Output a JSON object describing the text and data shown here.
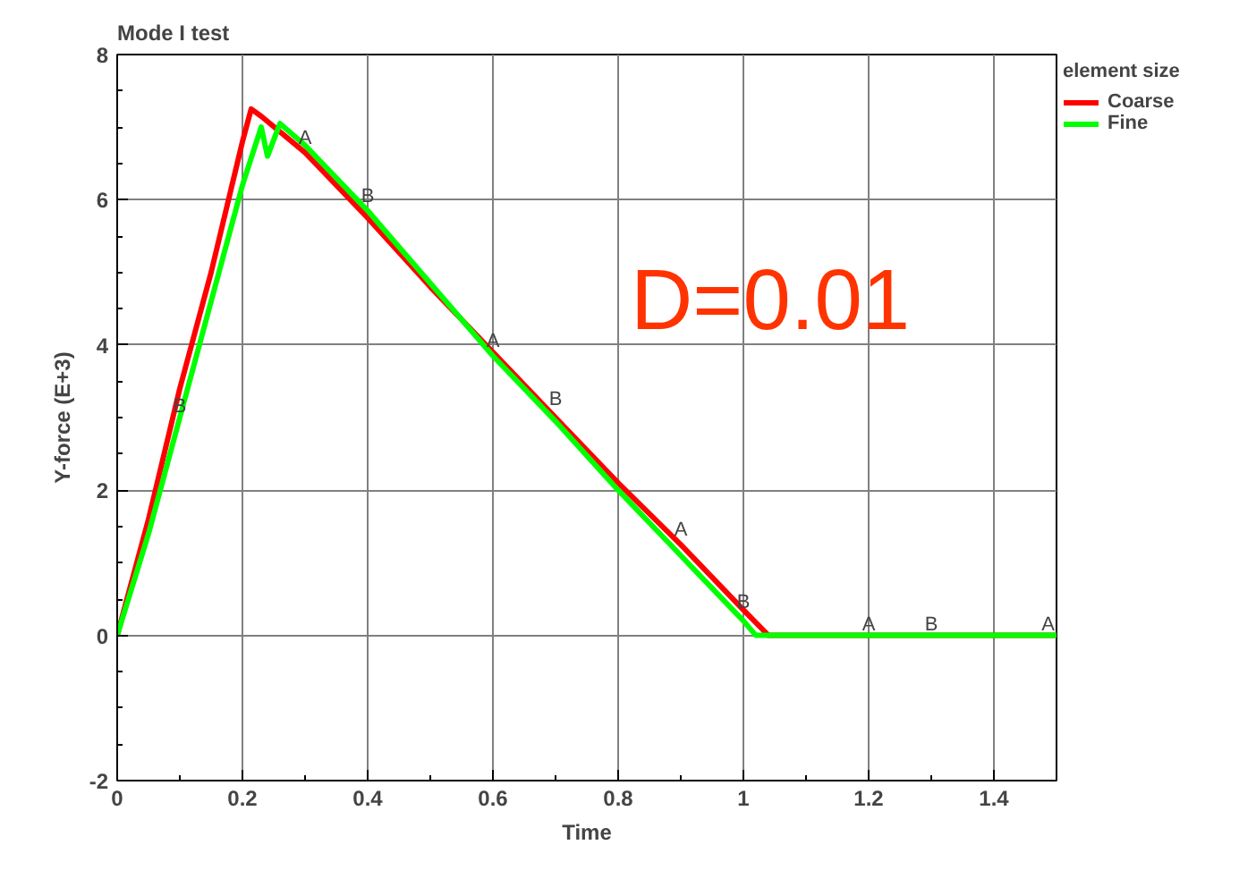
{
  "chart_data": {
    "type": "line",
    "title": "Mode I test",
    "xlabel": "Time",
    "ylabel": "Y-force (E+3)",
    "legend_title": "element size",
    "xlim": [
      0,
      1.5
    ],
    "ylim": [
      -2,
      8
    ],
    "xticks": [
      0,
      0.2,
      0.4,
      0.6,
      0.8,
      1,
      1.2,
      1.4
    ],
    "yticks": [
      -2,
      0,
      2,
      4,
      6,
      8
    ],
    "grid": true,
    "legend": "top right",
    "marker": "none",
    "line_style": "solid",
    "series": [
      {
        "name": "Coarse",
        "color": "#ff0000",
        "x": [
          0,
          0.05,
          0.1,
          0.15,
          0.2,
          0.214,
          0.23,
          0.3,
          0.4,
          0.5,
          0.6,
          0.7,
          0.8,
          0.9,
          1.0,
          1.04,
          1.2,
          1.5
        ],
        "values": [
          0,
          1.6,
          3.4,
          5.0,
          6.8,
          7.25,
          7.15,
          6.65,
          5.75,
          4.8,
          3.9,
          3.0,
          2.1,
          1.25,
          0.35,
          0,
          0,
          0
        ]
      },
      {
        "name": "Fine",
        "color": "#00ff00",
        "x": [
          0,
          0.05,
          0.1,
          0.15,
          0.2,
          0.23,
          0.24,
          0.26,
          0.3,
          0.4,
          0.5,
          0.6,
          0.7,
          0.8,
          0.9,
          1.0,
          1.02,
          1.5
        ],
        "values": [
          0,
          1.4,
          3.0,
          4.6,
          6.2,
          7.0,
          6.6,
          7.05,
          6.75,
          5.85,
          4.85,
          3.85,
          2.95,
          2.0,
          1.1,
          0.2,
          0,
          0
        ]
      }
    ],
    "annotations": [
      "D=0.01",
      {
        "text": "A",
        "x": 0.3,
        "y": 6.7
      },
      {
        "text": "A",
        "x": 0.6,
        "y": 3.9
      },
      {
        "text": "A",
        "x": 0.9,
        "y": 1.3
      },
      {
        "text": "A",
        "x": 1.2,
        "y": 0
      },
      {
        "text": "A",
        "x": 1.5,
        "y": 0
      },
      {
        "text": "B",
        "x": 0.1,
        "y": 3.0
      },
      {
        "text": "B",
        "x": 0.4,
        "y": 5.9
      },
      {
        "text": "B",
        "x": 0.7,
        "y": 3.1
      },
      {
        "text": "B",
        "x": 1.0,
        "y": 0.3
      },
      {
        "text": "B",
        "x": 1.3,
        "y": 0
      }
    ]
  }
}
